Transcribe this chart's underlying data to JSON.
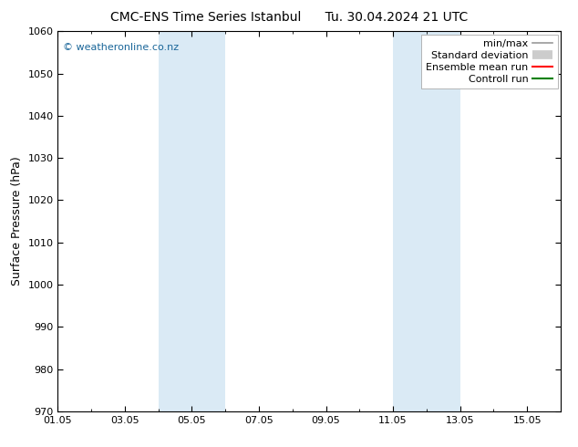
{
  "title_left": "CMC-ENS Time Series Istanbul",
  "title_right": "Tu. 30.04.2024 21 UTC",
  "ylabel": "Surface Pressure (hPa)",
  "ylim": [
    970,
    1060
  ],
  "yticks": [
    970,
    980,
    990,
    1000,
    1010,
    1020,
    1030,
    1040,
    1050,
    1060
  ],
  "xlim": [
    0,
    15
  ],
  "xtick_labels": [
    "01.05",
    "03.05",
    "05.05",
    "07.05",
    "09.05",
    "11.05",
    "13.05",
    "15.05"
  ],
  "xtick_positions": [
    0,
    2,
    4,
    6,
    8,
    10,
    12,
    14
  ],
  "shade_bands": [
    {
      "x_start": 3.0,
      "x_end": 5.0
    },
    {
      "x_start": 10.0,
      "x_end": 12.0
    }
  ],
  "shade_color": "#daeaf5",
  "watermark": "© weatheronline.co.nz",
  "watermark_color": "#1a6699",
  "legend_items": [
    {
      "label": "min/max",
      "color": "#999999",
      "lw": 1.2,
      "style": "-"
    },
    {
      "label": "Standard deviation",
      "color": "#cccccc",
      "lw": 7,
      "style": "-"
    },
    {
      "label": "Ensemble mean run",
      "color": "red",
      "lw": 1.5,
      "style": "-"
    },
    {
      "label": "Controll run",
      "color": "green",
      "lw": 1.5,
      "style": "-"
    }
  ],
  "background_color": "#ffffff",
  "plot_bg_color": "#ffffff",
  "title_fontsize": 10,
  "ylabel_fontsize": 9,
  "tick_fontsize": 8,
  "legend_fontsize": 8,
  "watermark_fontsize": 8
}
